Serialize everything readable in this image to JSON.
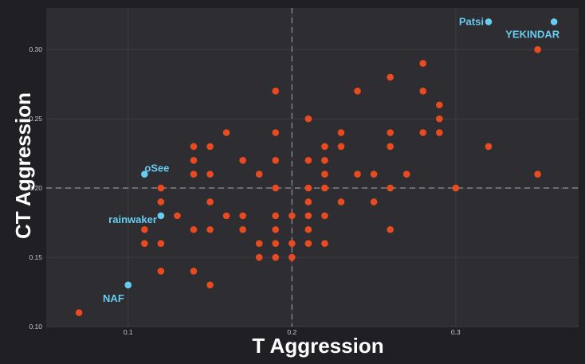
{
  "chart_data": {
    "type": "scatter",
    "title": "",
    "xlabel": "T Aggression",
    "ylabel": "CT Aggression",
    "xlim": [
      0.05,
      0.375
    ],
    "ylim": [
      0.1,
      0.33
    ],
    "xticks": [
      0.1,
      0.2,
      0.3
    ],
    "xtick_labels": [
      "0.1",
      "0.2",
      "0.3"
    ],
    "yticks": [
      0.1,
      0.15,
      0.2,
      0.25,
      0.3
    ],
    "ytick_labels": [
      "0.10",
      "0.15",
      "0.20",
      "0.25",
      "0.30"
    ],
    "reference_lines": {
      "x": 0.2,
      "y": 0.2
    },
    "grid": true,
    "colors": {
      "background": "#1f1f24",
      "plot_background": "#2e2d31",
      "grid": "#3f3e43",
      "points": "#ea4a1f",
      "highlight": "#66ccf0",
      "reference_line": "#8a8a8e"
    },
    "points": [
      [
        0.07,
        0.11
      ],
      [
        0.11,
        0.17
      ],
      [
        0.11,
        0.16
      ],
      [
        0.12,
        0.2
      ],
      [
        0.12,
        0.19
      ],
      [
        0.12,
        0.16
      ],
      [
        0.12,
        0.14
      ],
      [
        0.13,
        0.18
      ],
      [
        0.14,
        0.23
      ],
      [
        0.14,
        0.22
      ],
      [
        0.14,
        0.21
      ],
      [
        0.14,
        0.17
      ],
      [
        0.14,
        0.14
      ],
      [
        0.15,
        0.23
      ],
      [
        0.15,
        0.21
      ],
      [
        0.15,
        0.19
      ],
      [
        0.15,
        0.17
      ],
      [
        0.15,
        0.13
      ],
      [
        0.16,
        0.24
      ],
      [
        0.16,
        0.18
      ],
      [
        0.17,
        0.22
      ],
      [
        0.17,
        0.18
      ],
      [
        0.17,
        0.17
      ],
      [
        0.18,
        0.21
      ],
      [
        0.18,
        0.16
      ],
      [
        0.18,
        0.15
      ],
      [
        0.19,
        0.27
      ],
      [
        0.19,
        0.24
      ],
      [
        0.19,
        0.22
      ],
      [
        0.19,
        0.2
      ],
      [
        0.19,
        0.18
      ],
      [
        0.19,
        0.17
      ],
      [
        0.19,
        0.16
      ],
      [
        0.19,
        0.15
      ],
      [
        0.2,
        0.18
      ],
      [
        0.2,
        0.16
      ],
      [
        0.2,
        0.15
      ],
      [
        0.21,
        0.25
      ],
      [
        0.21,
        0.22
      ],
      [
        0.21,
        0.2
      ],
      [
        0.21,
        0.19
      ],
      [
        0.21,
        0.18
      ],
      [
        0.21,
        0.17
      ],
      [
        0.21,
        0.16
      ],
      [
        0.22,
        0.23
      ],
      [
        0.22,
        0.22
      ],
      [
        0.22,
        0.21
      ],
      [
        0.22,
        0.2
      ],
      [
        0.22,
        0.18
      ],
      [
        0.22,
        0.16
      ],
      [
        0.23,
        0.24
      ],
      [
        0.23,
        0.23
      ],
      [
        0.23,
        0.19
      ],
      [
        0.24,
        0.27
      ],
      [
        0.24,
        0.21
      ],
      [
        0.25,
        0.21
      ],
      [
        0.25,
        0.19
      ],
      [
        0.26,
        0.28
      ],
      [
        0.26,
        0.24
      ],
      [
        0.26,
        0.23
      ],
      [
        0.26,
        0.2
      ],
      [
        0.26,
        0.17
      ],
      [
        0.27,
        0.21
      ],
      [
        0.28,
        0.29
      ],
      [
        0.28,
        0.27
      ],
      [
        0.28,
        0.24
      ],
      [
        0.29,
        0.26
      ],
      [
        0.29,
        0.25
      ],
      [
        0.29,
        0.24
      ],
      [
        0.3,
        0.2
      ],
      [
        0.32,
        0.23
      ],
      [
        0.35,
        0.3
      ],
      [
        0.35,
        0.21
      ]
    ],
    "highlighted": [
      {
        "name": "Patsi",
        "x": 0.32,
        "y": 0.32
      },
      {
        "name": "YEKINDAR",
        "x": 0.36,
        "y": 0.32
      },
      {
        "name": "oSee",
        "x": 0.11,
        "y": 0.21
      },
      {
        "name": "rainwaker",
        "x": 0.12,
        "y": 0.18
      },
      {
        "name": "NAF",
        "x": 0.1,
        "y": 0.13
      }
    ]
  }
}
